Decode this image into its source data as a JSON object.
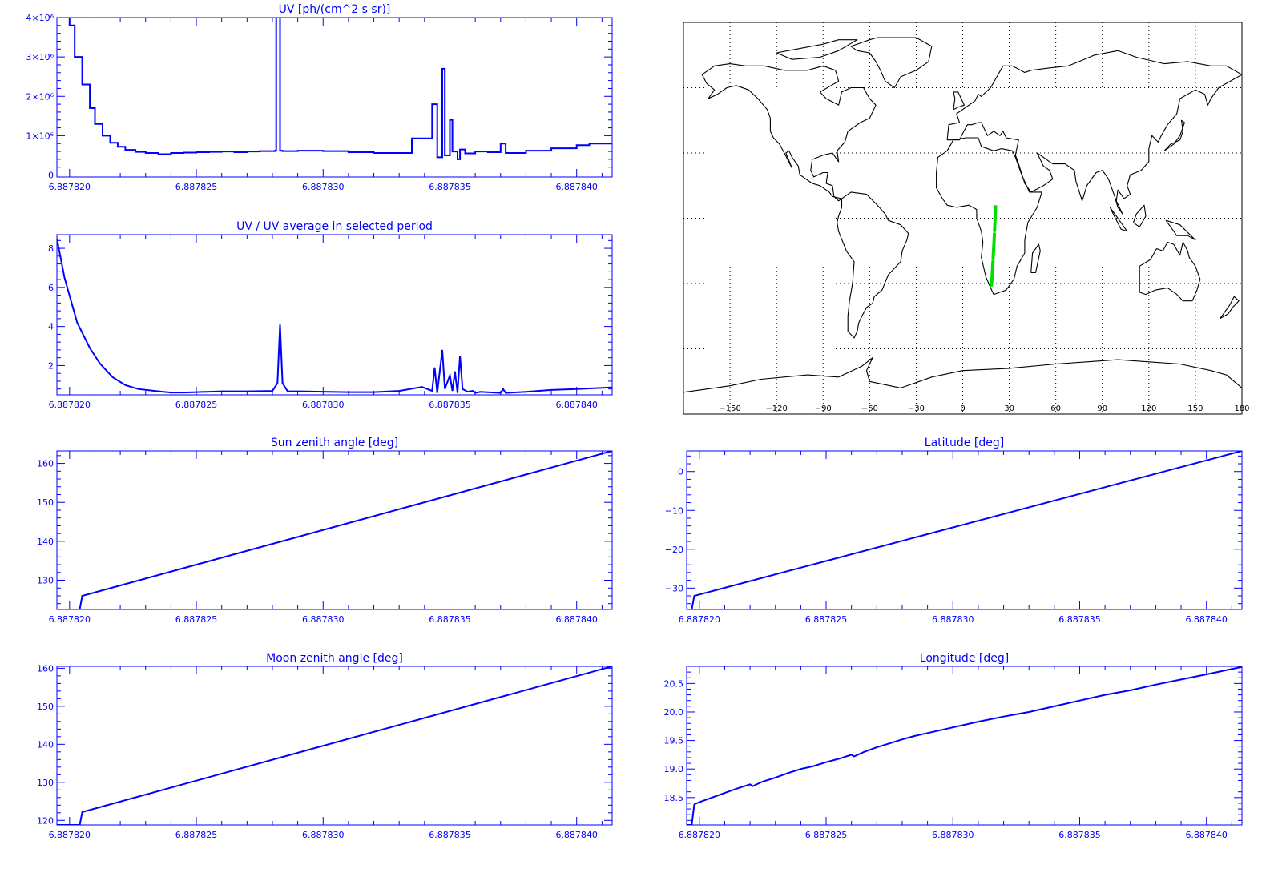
{
  "colors": {
    "axis": "#0000ff",
    "series": "#0000ff",
    "map_line": "#000000",
    "track": "#00e000"
  },
  "chart_data": [
    {
      "id": "uv",
      "type": "line",
      "title": "UV [ph/(cm^2 s sr)]",
      "xlabel": "",
      "ylabel": "",
      "xlim": [
        6.8878195,
        6.8878414
      ],
      "ylim": [
        -50000,
        4000000
      ],
      "xticks": [
        "6.887820",
        "6.887825",
        "6.887830",
        "6.887835",
        "6.887840"
      ],
      "xtick_values": [
        6.88782,
        6.887825,
        6.88783,
        6.887835,
        6.88784
      ],
      "yticks": [
        "0",
        "1×10⁶",
        "2×10⁶",
        "3×10⁶",
        "4×10⁶"
      ],
      "ytick_values": [
        0,
        1000000,
        2000000,
        3000000,
        4000000
      ],
      "step": true,
      "x": [
        6.8878195,
        6.88782,
        6.8878202,
        6.8878205,
        6.8878208,
        6.887821,
        6.8878213,
        6.8878216,
        6.8878219,
        6.8878222,
        6.8878226,
        6.887823,
        6.8878235,
        6.887824,
        6.8878245,
        6.887825,
        6.8878255,
        6.887826,
        6.8878265,
        6.887827,
        6.8878275,
        6.8878281,
        6.88782815,
        6.8878283,
        6.8878284,
        6.887829,
        6.88783,
        6.887831,
        6.887832,
        6.8878335,
        6.8878343,
        6.8878345,
        6.8878347,
        6.8878348,
        6.887835,
        6.8878351,
        6.8878353,
        6.8878354,
        6.8878356,
        6.887836,
        6.8878365,
        6.887837,
        6.8878372,
        6.887838,
        6.887839,
        6.88784,
        6.8878405,
        6.8878414
      ],
      "values": [
        4000000,
        3800000,
        3000000,
        2300000,
        1700000,
        1300000,
        1000000,
        820000,
        720000,
        640000,
        590000,
        560000,
        530000,
        560000,
        570000,
        580000,
        590000,
        600000,
        580000,
        600000,
        610000,
        620000,
        4000000,
        620000,
        610000,
        620000,
        610000,
        580000,
        560000,
        930000,
        1800000,
        450000,
        2700000,
        500000,
        1400000,
        600000,
        400000,
        650000,
        550000,
        600000,
        580000,
        800000,
        560000,
        620000,
        680000,
        760000,
        800000,
        800000
      ]
    },
    {
      "id": "uv_ratio",
      "type": "line",
      "title": "UV / UV average in selected period",
      "xlabel": "",
      "ylabel": "",
      "xlim": [
        6.8878195,
        6.8878414
      ],
      "ylim": [
        0.5,
        8.7
      ],
      "xticks": [
        "6.887820",
        "6.887825",
        "6.887830",
        "6.887835",
        "6.887840"
      ],
      "xtick_values": [
        6.88782,
        6.887825,
        6.88783,
        6.887835,
        6.88784
      ],
      "yticks": [
        "2",
        "4",
        "6",
        "8"
      ],
      "ytick_values": [
        2,
        4,
        6,
        8
      ],
      "x": [
        6.8878195,
        6.8878198,
        6.8878203,
        6.8878208,
        6.8878212,
        6.8878217,
        6.8878222,
        6.8878227,
        6.8878235,
        6.887824,
        6.8878245,
        6.887825,
        6.8878255,
        6.887826,
        6.887827,
        6.887828,
        6.8878282,
        6.8878283,
        6.8878284,
        6.8878286,
        6.887829,
        6.88783,
        6.887831,
        6.887832,
        6.887833,
        6.8878339,
        6.8878343,
        6.8878344,
        6.8878345,
        6.8878347,
        6.8878348,
        6.887835,
        6.8878351,
        6.8878352,
        6.8878353,
        6.8878354,
        6.8878355,
        6.8878357,
        6.8878359,
        6.887836,
        6.8878362,
        6.887837,
        6.8878371,
        6.8878372,
        6.887838,
        6.887839,
        6.88784,
        6.8878414
      ],
      "values": [
        8.5,
        6.5,
        4.2,
        2.9,
        2.1,
        1.4,
        1.0,
        0.8,
        0.68,
        0.62,
        0.62,
        0.64,
        0.66,
        0.68,
        0.68,
        0.7,
        1.1,
        4.1,
        1.1,
        0.68,
        0.68,
        0.66,
        0.64,
        0.64,
        0.7,
        0.9,
        0.7,
        1.9,
        0.6,
        2.8,
        0.8,
        1.5,
        0.7,
        1.7,
        0.6,
        2.5,
        0.8,
        0.66,
        0.7,
        0.6,
        0.65,
        0.6,
        0.8,
        0.6,
        0.65,
        0.75,
        0.8,
        0.88
      ]
    },
    {
      "id": "sun_zenith",
      "type": "line",
      "title": "Sun zenith angle [deg]",
      "xlabel": "",
      "ylabel": "",
      "xlim": [
        6.8878195,
        6.8878414
      ],
      "ylim": [
        122.5,
        163.2
      ],
      "xticks": [
        "6.887820",
        "6.887825",
        "6.887830",
        "6.887835",
        "6.887840"
      ],
      "xtick_values": [
        6.88782,
        6.887825,
        6.88783,
        6.887835,
        6.88784
      ],
      "yticks": [
        "130",
        "140",
        "150",
        "160"
      ],
      "ytick_values": [
        130,
        140,
        150,
        160
      ],
      "x": [
        6.8878195,
        6.8878204,
        6.8878205,
        6.8878414
      ],
      "values": [
        122.5,
        122.5,
        126.0,
        163.2
      ]
    },
    {
      "id": "latitude",
      "type": "line",
      "title": "Latitude [deg]",
      "xlabel": "",
      "ylabel": "",
      "xlim": [
        6.8878195,
        6.8878414
      ],
      "ylim": [
        -35.5,
        5.3
      ],
      "xticks": [
        "6.887820",
        "6.887825",
        "6.887830",
        "6.887835",
        "6.887840"
      ],
      "xtick_values": [
        6.88782,
        6.887825,
        6.88783,
        6.887835,
        6.88784
      ],
      "yticks": [
        "−30",
        "−20",
        "−10",
        "0"
      ],
      "ytick_values": [
        -30,
        -20,
        -10,
        0
      ],
      "x": [
        6.8878195,
        6.8878197,
        6.8878198,
        6.8878414
      ],
      "values": [
        -35.5,
        -35.5,
        -32.0,
        5.3
      ]
    },
    {
      "id": "moon_zenith",
      "type": "line",
      "title": "Moon zenith angle [deg]",
      "xlabel": "",
      "ylabel": "",
      "xlim": [
        6.8878195,
        6.8878414
      ],
      "ylim": [
        118.8,
        160.5
      ],
      "xticks": [
        "6.887820",
        "6.887825",
        "6.887830",
        "6.887835",
        "6.887840"
      ],
      "xtick_values": [
        6.88782,
        6.887825,
        6.88783,
        6.887835,
        6.88784
      ],
      "yticks": [
        "120",
        "130",
        "140",
        "150",
        "160"
      ],
      "ytick_values": [
        120,
        130,
        140,
        150,
        160
      ],
      "x": [
        6.8878195,
        6.8878204,
        6.8878205,
        6.8878414
      ],
      "values": [
        118.8,
        118.8,
        122.2,
        160.5
      ]
    },
    {
      "id": "longitude",
      "type": "line",
      "title": "Longitude [deg]",
      "xlabel": "",
      "ylabel": "",
      "xlim": [
        6.8878195,
        6.8878414
      ],
      "ylim": [
        18.02,
        20.8
      ],
      "xticks": [
        "6.887820",
        "6.887825",
        "6.887830",
        "6.887835",
        "6.887840"
      ],
      "xtick_values": [
        6.88782,
        6.887825,
        6.88783,
        6.887835,
        6.88784
      ],
      "yticks": [
        "18.5",
        "19.0",
        "19.5",
        "20.0",
        "20.5"
      ],
      "ytick_values": [
        18.5,
        19.0,
        19.5,
        20.0,
        20.5
      ],
      "x": [
        6.8878195,
        6.8878197,
        6.8878198,
        6.88782,
        6.8878205,
        6.887821,
        6.8878215,
        6.887822,
        6.8878221,
        6.8878225,
        6.887823,
        6.8878235,
        6.887824,
        6.8878245,
        6.887825,
        6.8878255,
        6.887826,
        6.8878261,
        6.8878265,
        6.887827,
        6.8878275,
        6.887828,
        6.8878285,
        6.887829,
        6.88783,
        6.887831,
        6.887832,
        6.887833,
        6.887834,
        6.887835,
        6.887836,
        6.887837,
        6.887838,
        6.887839,
        6.88784,
        6.8878414
      ],
      "values": [
        18.02,
        18.02,
        18.38,
        18.42,
        18.5,
        18.58,
        18.66,
        18.73,
        18.7,
        18.78,
        18.85,
        18.93,
        19.0,
        19.05,
        19.12,
        19.18,
        19.25,
        19.22,
        19.3,
        19.38,
        19.45,
        19.52,
        19.58,
        19.63,
        19.73,
        19.83,
        19.92,
        20.0,
        20.1,
        20.2,
        20.3,
        20.38,
        20.48,
        20.57,
        20.66,
        20.79
      ]
    },
    {
      "id": "map",
      "type": "scatter",
      "title": "",
      "xlim": [
        -180,
        180
      ],
      "ylim": [
        -90,
        90
      ],
      "xticks": [
        "−150",
        "−120",
        "−90",
        "−60",
        "−30",
        "0",
        "30",
        "60",
        "90",
        "120",
        "150",
        "180"
      ],
      "xtick_values": [
        -150,
        -120,
        -90,
        -60,
        -30,
        0,
        30,
        60,
        90,
        120,
        150,
        180
      ],
      "grid": true,
      "track": {
        "lon": [
          21.2,
          20.8,
          20.5,
          20.2,
          19.8,
          19.4,
          19.0,
          18.6,
          18.4
        ],
        "lat": [
          5.3,
          -1.0,
          -6.0,
          -11.0,
          -16.0,
          -21.0,
          -26.0,
          -30.0,
          -32.0
        ]
      }
    }
  ]
}
